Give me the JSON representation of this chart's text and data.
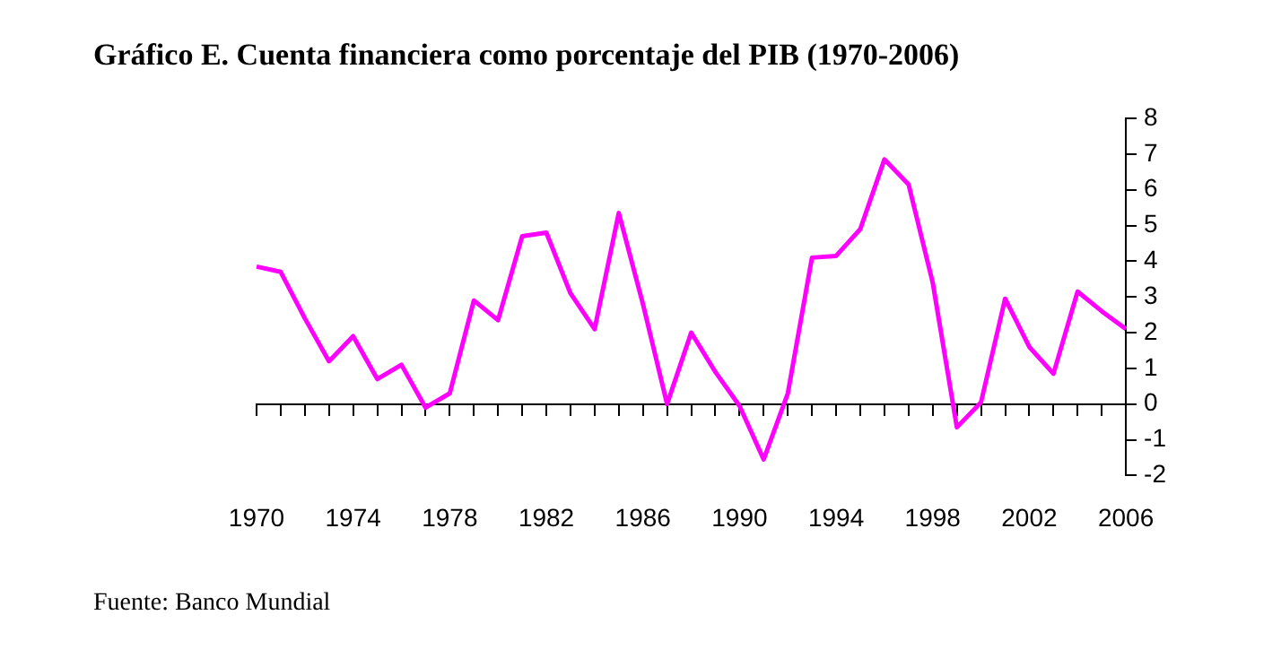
{
  "chart_data": {
    "type": "line",
    "title": "Gráfico E. Cuenta financiera como porcentaje del PIB (1970-2006)",
    "categories": [
      "1970",
      null,
      null,
      null,
      "1974",
      null,
      null,
      null,
      "1978",
      null,
      null,
      null,
      "1982",
      null,
      null,
      null,
      "1986",
      null,
      null,
      null,
      "1990",
      null,
      null,
      null,
      "1994",
      null,
      null,
      null,
      "1998",
      null,
      null,
      null,
      "2002",
      null,
      null,
      null,
      "2006"
    ],
    "series": [
      {
        "color": "#ff00ff",
        "values": [
          3.85,
          3.7,
          2.4,
          1.2,
          1.9,
          0.7,
          1.1,
          -0.1,
          0.3,
          2.9,
          2.35,
          4.7,
          4.8,
          3.1,
          2.1,
          5.35,
          2.8,
          0.0,
          2.0,
          0.9,
          -0.05,
          -1.55,
          0.3,
          4.1,
          4.15,
          4.9,
          6.85,
          6.15,
          3.4,
          -0.65,
          0.05,
          2.95,
          1.6,
          0.85,
          3.15,
          2.6,
          2.1
        ]
      }
    ],
    "ylim": [
      -2,
      8
    ],
    "yticks": [
      -2,
      -1,
      0,
      1,
      2,
      3,
      4,
      5,
      6,
      7,
      8
    ],
    "legend": false,
    "marker": "none",
    "line_style": "solid",
    "annotations": [
      "Fuente: Banco Mundial"
    ]
  }
}
